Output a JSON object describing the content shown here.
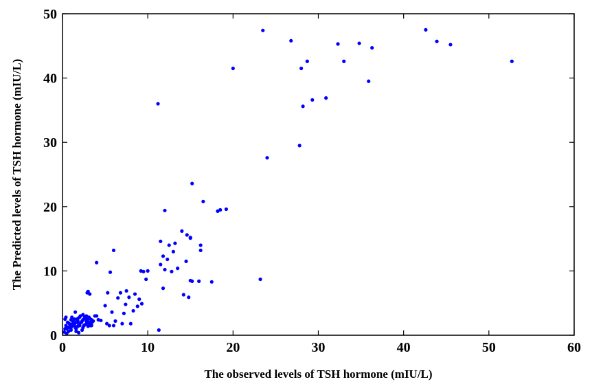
{
  "chart_data": {
    "type": "scatter",
    "xlabel": "The observed levels of TSH hormone (mIU/L)",
    "ylabel": "The  Predicted levels of TSH hormone  (mIU/L)",
    "xlim": [
      0,
      60
    ],
    "ylim": [
      0,
      50
    ],
    "xticks": [
      "0",
      "10",
      "20",
      "30",
      "40",
      "50",
      "60"
    ],
    "yticks": [
      "0",
      "10",
      "20",
      "30",
      "40",
      "50"
    ],
    "grid": false,
    "marker_color": "#0000ff",
    "series": [
      {
        "x": [
          0.2,
          0.4,
          0.6,
          0.8,
          1.0,
          1.2,
          1.4,
          1.6,
          1.8,
          2.0,
          2.2,
          2.4,
          2.6,
          2.8,
          3.0,
          3.2,
          3.4,
          3.6,
          3.8,
          0.3,
          0.5,
          0.9,
          1.1,
          1.3,
          1.5,
          1.7,
          1.9,
          2.1,
          2.3,
          2.5,
          2.7,
          2.9,
          3.1,
          3.3,
          3.5,
          0.5,
          0.8,
          1.2,
          1.6,
          2.0,
          2.4,
          2.8,
          3.2,
          0.6,
          1.0,
          1.4,
          1.8,
          2.2,
          2.6,
          3.0,
          3.4,
          1.6,
          2.4,
          0.3,
          1.0,
          1.8,
          2.6,
          3.4,
          0.4,
          1.2,
          2.0,
          2.8,
          0.7,
          1.5,
          2.3,
          3.1,
          1.9,
          2.9,
          3.0,
          3.2,
          4.0,
          5.6,
          6.0,
          4.0,
          5.0,
          5.5,
          6.2,
          7.0,
          7.5,
          8.0,
          8.5,
          9.0,
          9.5,
          10.0,
          5.2,
          5.8,
          6.5,
          7.2,
          7.8,
          8.3,
          9.2,
          9.8,
          4.5,
          5.3,
          6.8,
          7.4,
          8.8,
          9.3,
          4.2,
          6.0,
          11.3,
          11.5,
          11.8,
          12.0,
          12.5,
          12.8,
          13.2,
          13.5,
          14.0,
          14.2,
          14.5,
          14.8,
          15.0,
          15.2,
          16.0,
          16.2,
          16.5,
          11.5,
          11.8,
          12.0,
          12.3,
          13.0,
          14.6,
          15.0,
          17.5,
          15.2,
          16.2,
          18.2,
          18.5,
          19.2,
          11.2,
          15.0,
          20.0,
          23.2,
          23.5,
          24.0,
          26.8,
          27.8,
          28.0,
          28.2,
          28.7,
          29.3,
          30.9,
          32.3,
          33.0,
          34.8,
          35.9,
          36.3,
          42.6,
          43.9,
          45.5,
          52.7
        ],
        "y": [
          0.5,
          1.5,
          2.0,
          1.2,
          0.8,
          1.8,
          2.5,
          1.0,
          2.2,
          1.5,
          2.0,
          1.2,
          2.8,
          1.8,
          2.5,
          2.0,
          1.5,
          2.2,
          3.0,
          2.5,
          1.0,
          1.5,
          2.8,
          2.0,
          1.2,
          2.5,
          1.8,
          3.0,
          2.2,
          1.5,
          2.6,
          2.0,
          2.8,
          1.5,
          2.2,
          0.3,
          1.8,
          1.5,
          2.0,
          1.6,
          2.4,
          2.2,
          2.6,
          1.2,
          2.4,
          1.6,
          2.6,
          2.0,
          2.8,
          1.4,
          1.8,
          0.6,
          3.2,
          1.0,
          1.2,
          1.4,
          1.6,
          2.4,
          2.8,
          2.2,
          2.8,
          3.0,
          0.6,
          3.6,
          0.8,
          1.6,
          0.4,
          6.6,
          6.8,
          6.4,
          11.3,
          9.8,
          13.2,
          3.0,
          4.6,
          1.5,
          2.2,
          1.8,
          6.9,
          1.8,
          6.4,
          5.6,
          9.9,
          10.0,
          1.8,
          3.6,
          5.8,
          3.4,
          5.9,
          3.8,
          10.0,
          8.7,
          2.3,
          6.6,
          6.6,
          4.8,
          4.5,
          4.9,
          2.4,
          1.5,
          0.8,
          11.0,
          7.3,
          19.4,
          14.0,
          9.9,
          14.3,
          10.4,
          16.2,
          6.3,
          11.5,
          5.9,
          8.5,
          23.6,
          8.4,
          14.0,
          20.8,
          14.6,
          12.3,
          10.2,
          11.8,
          13.0,
          15.6,
          15.2,
          8.3,
          8.4,
          13.2,
          19.3,
          19.5,
          19.6,
          36.0,
          15.1,
          41.5,
          8.7,
          47.4,
          27.6,
          45.8,
          29.5,
          41.5,
          35.6,
          42.6,
          36.6,
          36.9,
          45.3,
          42.6,
          45.4,
          39.5,
          44.7,
          47.5,
          45.7,
          45.2,
          42.6
        ]
      }
    ]
  }
}
